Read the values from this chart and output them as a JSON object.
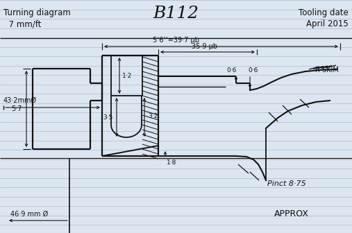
{
  "title": "B112",
  "top_left_line1": "Turning diagram",
  "top_left_line2": "  7 mm/ft",
  "top_right_line1": "Tooling date",
  "top_right_line2": "April 2015",
  "bg_color": "#dce6f0",
  "line_color": "#111111",
  "ruled_color": "#aabbd0",
  "annotations": {
    "dim_43_2": "43·2mmØ",
    "dim_58_397": "5‘6’’=39·7 µb",
    "dim_359": "35·9 µb",
    "dim_06_left": "0·6",
    "dim_06_right": "0·6",
    "dim_12": "1·2",
    "dim_35": "3·5",
    "dim_32": "3·2",
    "dim_18": "1·8",
    "dim_57": "5·7",
    "skim": "R SKIM",
    "pin_875": "Pinct 8·75",
    "approx": "APPROX",
    "dim_469": "46·9 mm Ø"
  }
}
